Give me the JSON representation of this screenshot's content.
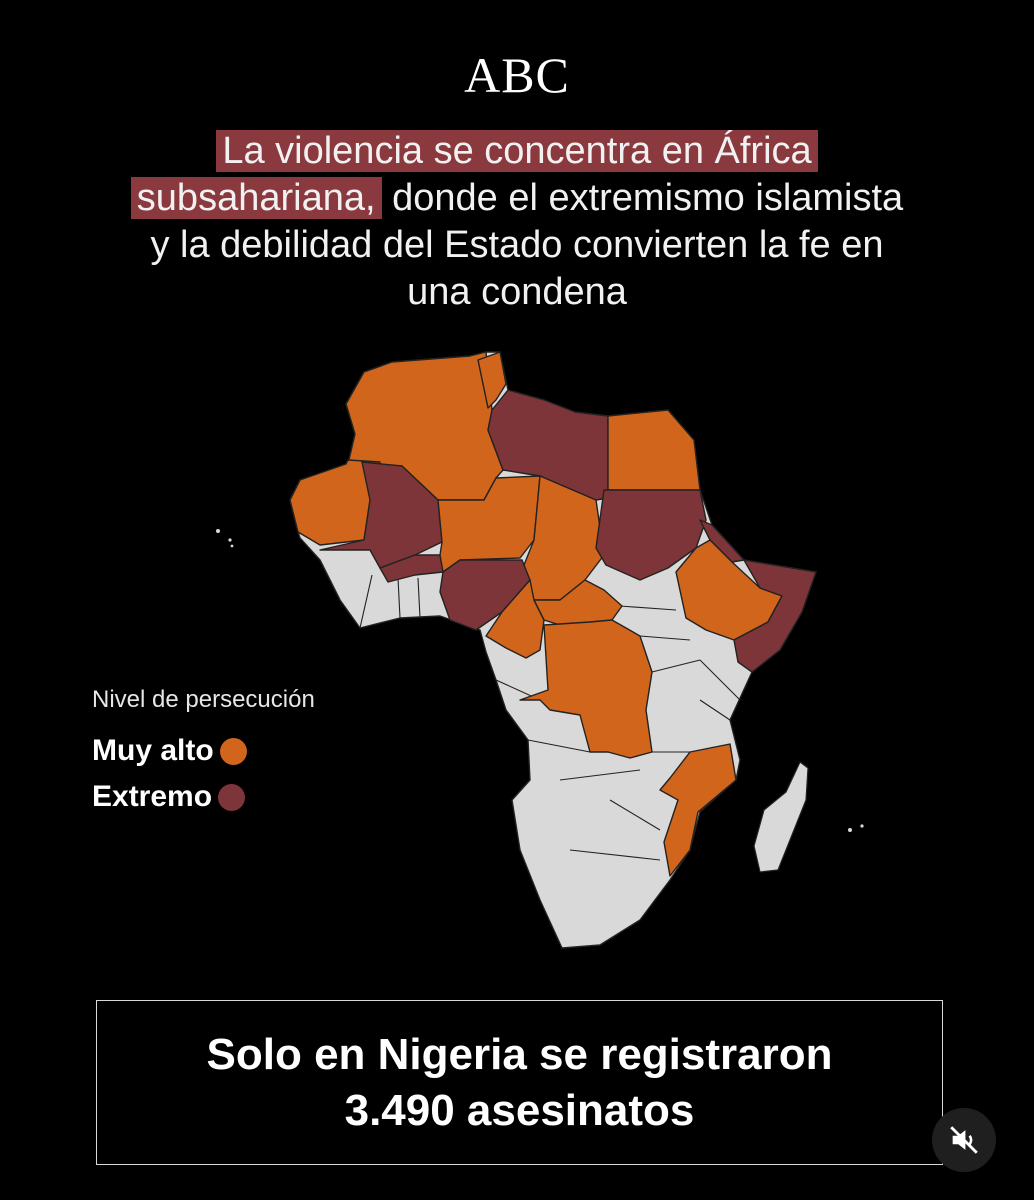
{
  "brand": {
    "logo_text": "ABC"
  },
  "headline": {
    "highlight_line1": "La violencia se concentra en África",
    "highlight_line2": "subsahariana,",
    "rest_line2": " donde el extremismo islamista",
    "line3": "y la debilidad del Estado convierten la fe en",
    "line4": "una condena"
  },
  "legend": {
    "title": "Nivel de persecución",
    "items": [
      {
        "label": "Muy alto",
        "color": "#d2651c"
      },
      {
        "label": "Extremo",
        "color": "#7e3539"
      }
    ]
  },
  "map": {
    "colors": {
      "muy_alto": "#d2651c",
      "extremo": "#7e3539",
      "other": "#d9d9d9",
      "border": "#222222"
    },
    "regions": [
      {
        "name": "Marruecos y Argelia",
        "level": "muy_alto"
      },
      {
        "name": "Túnez",
        "level": "muy_alto"
      },
      {
        "name": "Libia",
        "level": "extremo"
      },
      {
        "name": "Egipto",
        "level": "muy_alto"
      },
      {
        "name": "Mauritania",
        "level": "muy_alto"
      },
      {
        "name": "Malí",
        "level": "extremo"
      },
      {
        "name": "Burkina Faso",
        "level": "extremo"
      },
      {
        "name": "Níger",
        "level": "muy_alto"
      },
      {
        "name": "Chad",
        "level": "muy_alto"
      },
      {
        "name": "Sudán",
        "level": "extremo"
      },
      {
        "name": "Eritrea",
        "level": "extremo"
      },
      {
        "name": "Nigeria",
        "level": "extremo"
      },
      {
        "name": "Etiopía",
        "level": "muy_alto"
      },
      {
        "name": "Somalia",
        "level": "extremo"
      },
      {
        "name": "Camerún",
        "level": "muy_alto"
      },
      {
        "name": "República Centroafricana",
        "level": "muy_alto"
      },
      {
        "name": "RD Congo",
        "level": "muy_alto"
      },
      {
        "name": "Mozambique",
        "level": "muy_alto"
      }
    ]
  },
  "callout": {
    "line1": "Solo en Nigeria se registraron",
    "line2": "3.490 asesinatos"
  },
  "controls": {
    "mute_icon": "speaker-muted-icon"
  }
}
